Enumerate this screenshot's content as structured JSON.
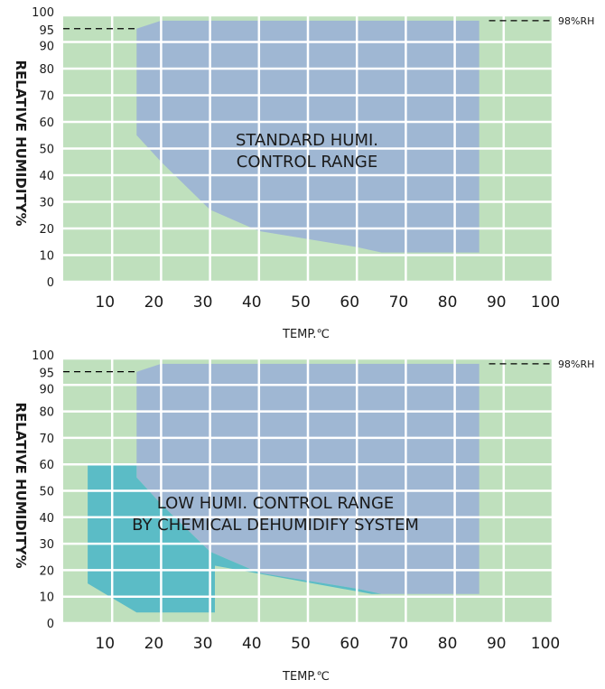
{
  "colors": {
    "background_green": "#bfe0bd",
    "standard_range_blue": "#9fb7d3",
    "low_range_teal": "#5bbcc6",
    "grid": "#ffffff",
    "text": "#1a1a1a"
  },
  "chart_data": [
    {
      "type": "area",
      "xlabel": "TEMP.℃",
      "ylabel": "RELATIVE HUMIDITY%",
      "xlim": [
        0,
        100
      ],
      "ylim": [
        0,
        100
      ],
      "x_ticks": [
        10,
        20,
        30,
        40,
        50,
        60,
        70,
        80,
        90,
        100
      ],
      "y_ticks": [
        0,
        10,
        20,
        30,
        40,
        50,
        60,
        70,
        80,
        90,
        95,
        100
      ],
      "grid": true,
      "reference_line": {
        "y": 98,
        "label": "98%RH"
      },
      "regions": [
        {
          "name": "standard",
          "label_lines": [
            "STANDARD HUMI.",
            "CONTROL RANGE"
          ],
          "points": [
            [
              15,
              95
            ],
            [
              15,
              55
            ],
            [
              20,
              45
            ],
            [
              30,
              27
            ],
            [
              40,
              19
            ],
            [
              50,
              16
            ],
            [
              60,
              13
            ],
            [
              65,
              11
            ],
            [
              85,
              11
            ],
            [
              85,
              98
            ],
            [
              20,
              98
            ]
          ]
        }
      ]
    },
    {
      "type": "area",
      "xlabel": "TEMP.℃",
      "ylabel": "RELATIVE HUMIDITY%",
      "xlim": [
        0,
        100
      ],
      "ylim": [
        0,
        100
      ],
      "x_ticks": [
        10,
        20,
        30,
        40,
        50,
        60,
        70,
        80,
        90,
        100
      ],
      "y_ticks": [
        0,
        10,
        20,
        30,
        40,
        50,
        60,
        70,
        80,
        90,
        95,
        100
      ],
      "grid": true,
      "reference_line": {
        "y": 98,
        "label": "98%RH"
      },
      "regions": [
        {
          "name": "standard",
          "points": [
            [
              15,
              95
            ],
            [
              15,
              55
            ],
            [
              20,
              45
            ],
            [
              30,
              27
            ],
            [
              40,
              19
            ],
            [
              50,
              16
            ],
            [
              60,
              13
            ],
            [
              65,
              11
            ],
            [
              85,
              11
            ],
            [
              85,
              98
            ],
            [
              20,
              98
            ]
          ]
        },
        {
          "name": "low",
          "label_lines": [
            "LOW HUMI. CONTROL RANGE",
            "BY CHEMICAL DEHUMIDIFY SYSTEM"
          ],
          "points": [
            [
              5,
              60
            ],
            [
              15,
              60
            ],
            [
              15,
              55
            ],
            [
              20,
              45
            ],
            [
              30,
              27
            ],
            [
              40,
              19
            ],
            [
              50,
              16
            ],
            [
              60,
              13
            ],
            [
              65,
              11
            ],
            [
              63,
              11
            ],
            [
              30,
              22
            ],
            [
              31,
              22
            ],
            [
              31,
              4
            ],
            [
              15,
              4
            ],
            [
              5,
              15
            ]
          ]
        }
      ]
    }
  ]
}
